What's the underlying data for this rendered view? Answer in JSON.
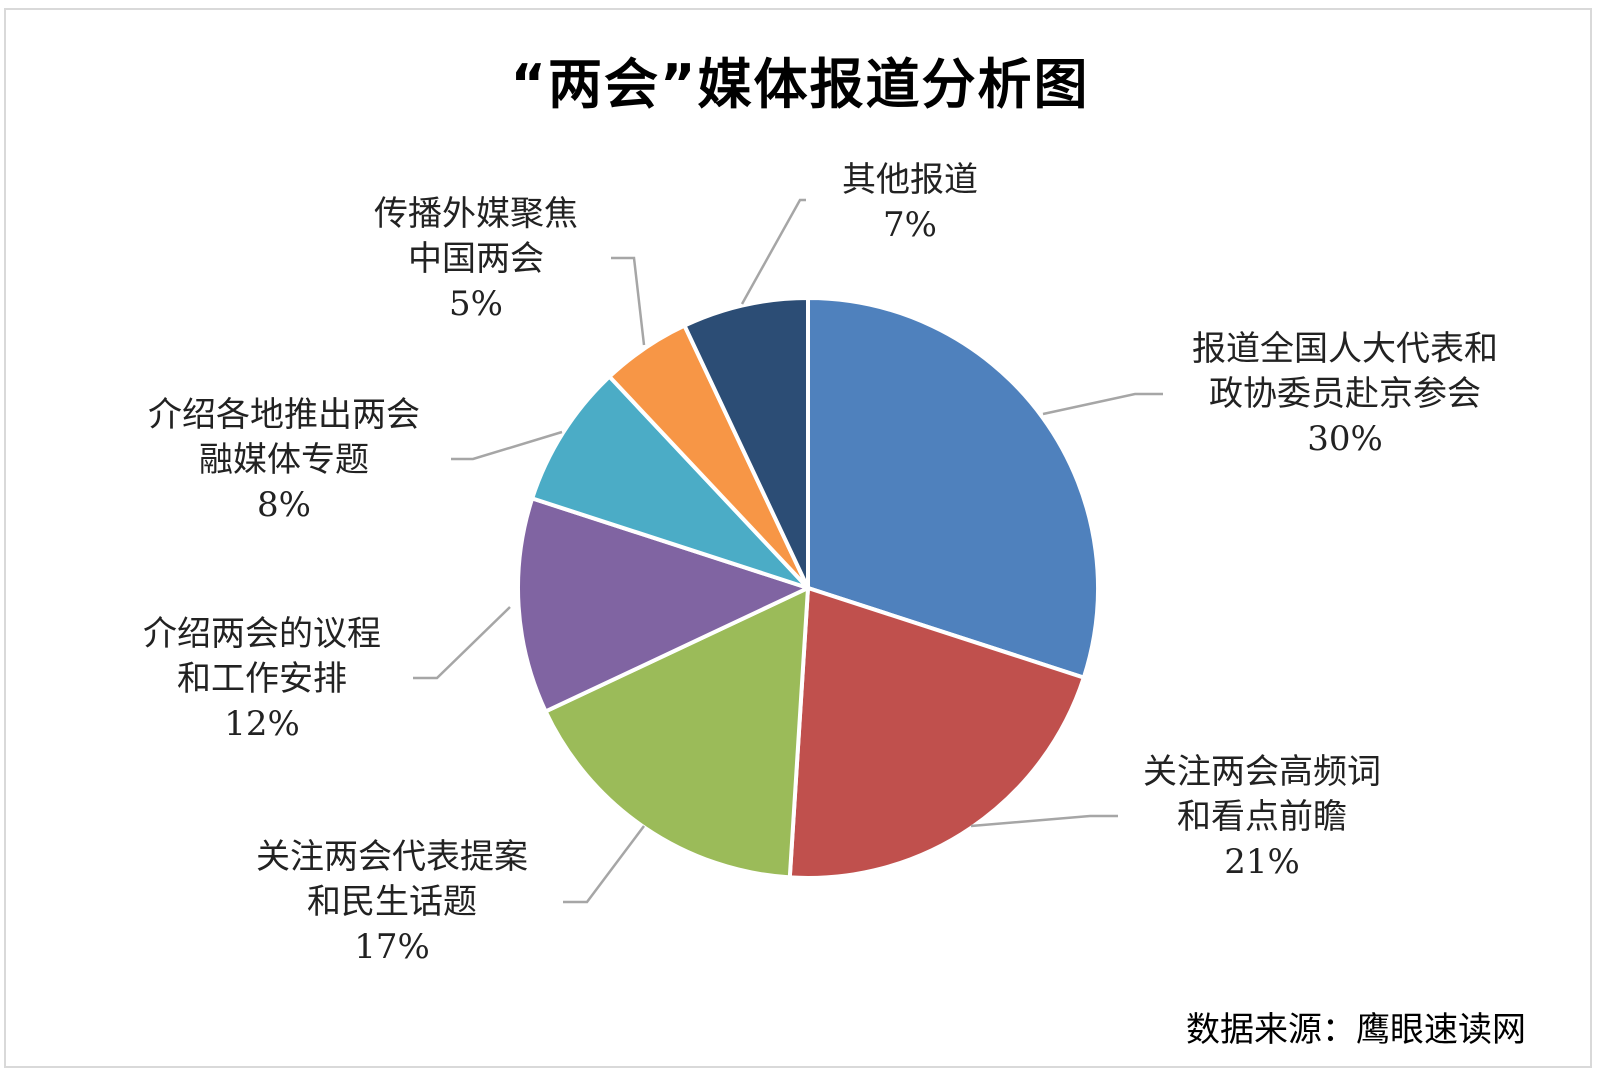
{
  "chart_data": {
    "type": "pie",
    "title": "“两会”媒体报道分析图",
    "source": "数据来源：鹰眼速读网",
    "slices": [
      {
        "label_lines": [
          "报道全国人大代表和",
          "政协委员赴京参会"
        ],
        "percent_label": "30%",
        "value": 30,
        "color": "#4f81bd"
      },
      {
        "label_lines": [
          "关注两会高频词",
          "和看点前瞻"
        ],
        "percent_label": "21%",
        "value": 21,
        "color": "#c0504d"
      },
      {
        "label_lines": [
          "关注两会代表提案",
          "和民生话题"
        ],
        "percent_label": "17%",
        "value": 17,
        "color": "#9bbb59"
      },
      {
        "label_lines": [
          "介绍两会的议程",
          "和工作安排"
        ],
        "percent_label": "12%",
        "value": 12,
        "color": "#8064a2"
      },
      {
        "label_lines": [
          "介绍各地推出两会",
          "融媒体专题"
        ],
        "percent_label": "8%",
        "value": 8,
        "color": "#4bacc6"
      },
      {
        "label_lines": [
          "传播外媒聚焦",
          "中国两会"
        ],
        "percent_label": "5%",
        "value": 5,
        "color": "#f79646"
      },
      {
        "label_lines": [
          "其他报道"
        ],
        "percent_label": "7%",
        "value": 7,
        "color": "#2c4d75"
      }
    ]
  }
}
